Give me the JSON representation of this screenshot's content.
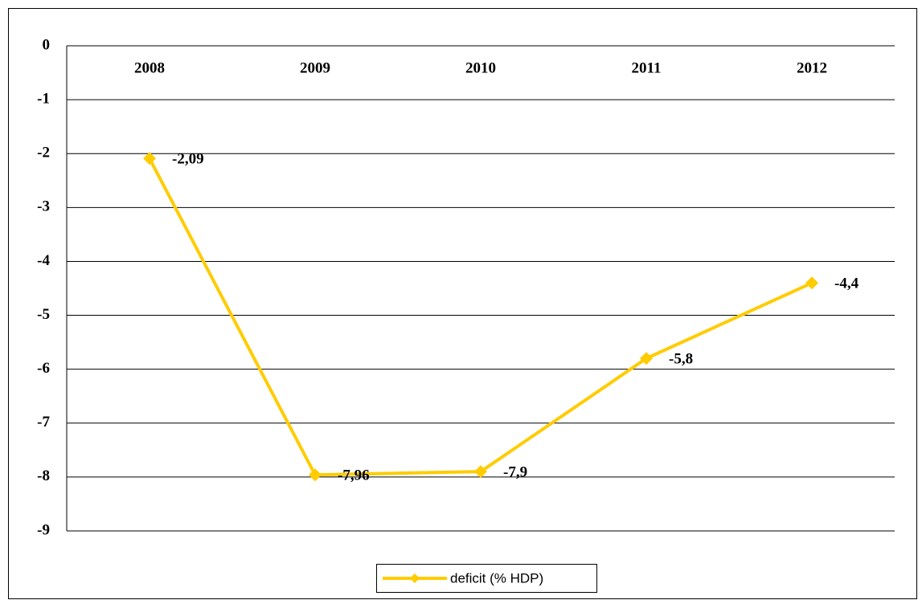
{
  "chart_data": {
    "type": "line",
    "categories": [
      "2008",
      "2009",
      "2010",
      "2011",
      "2012"
    ],
    "series": [
      {
        "name": "deficit (% HDP)",
        "color": "#FFCC00",
        "values": [
          -2.09,
          -7.96,
          -7.9,
          -5.8,
          -4.4
        ],
        "value_labels": [
          "-2,09",
          "-7,96",
          "-7,9",
          "-5,8",
          "-4,4"
        ]
      }
    ],
    "ylim": [
      -9,
      0
    ],
    "yticks": [
      0,
      -1,
      -2,
      -3,
      -4,
      -5,
      -6,
      -7,
      -8,
      -9
    ],
    "grid": true,
    "legend": "bottom"
  }
}
